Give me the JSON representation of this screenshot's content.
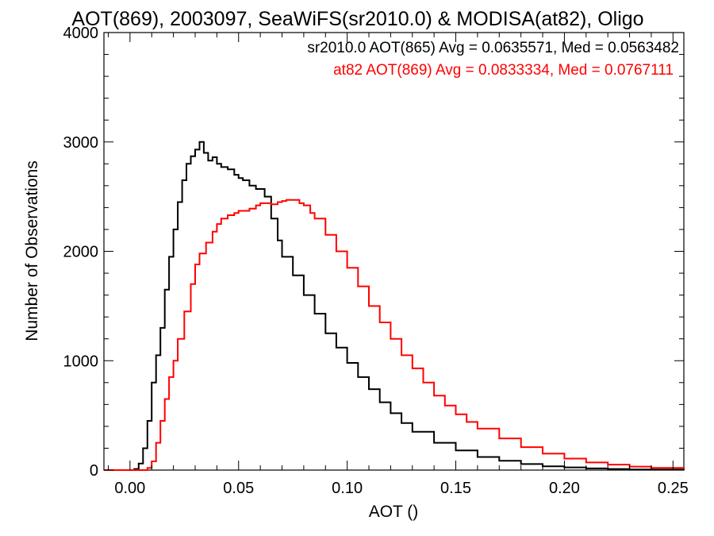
{
  "chart_data": {
    "type": "line",
    "title": "AOT(869), 2003097, SeaWiFS(sr2010.0) & MODISA(at82), Oligo",
    "xlabel": "AOT ()",
    "ylabel": "Number of Observations",
    "xlim": [
      -0.012,
      0.255
    ],
    "ylim": [
      0,
      4000
    ],
    "x_ticks": [
      0.0,
      0.05,
      0.1,
      0.15,
      0.2,
      0.25
    ],
    "x_tick_labels": [
      "0.00",
      "0.05",
      "0.10",
      "0.15",
      "0.20",
      "0.25"
    ],
    "y_ticks": [
      0,
      1000,
      2000,
      3000,
      4000
    ],
    "y_tick_labels": [
      "0",
      "1000",
      "2000",
      "3000",
      "4000"
    ],
    "grid": false,
    "annotations": [
      {
        "text": "sr2010.0 AOT(865) Avg = 0.0635571, Med = 0.0563482",
        "color": "#000000"
      },
      {
        "text": "at82 AOT(869) Avg = 0.0833334, Med = 0.0767111",
        "color": "#ff0000"
      }
    ],
    "series": [
      {
        "color": "#000000",
        "style": "step",
        "x": [
          -0.012,
          0.0,
          0.002,
          0.004,
          0.006,
          0.008,
          0.01,
          0.012,
          0.014,
          0.016,
          0.018,
          0.02,
          0.022,
          0.024,
          0.026,
          0.028,
          0.03,
          0.032,
          0.034,
          0.036,
          0.038,
          0.04,
          0.042,
          0.045,
          0.048,
          0.05,
          0.052,
          0.055,
          0.058,
          0.06,
          0.062,
          0.065,
          0.068,
          0.07,
          0.075,
          0.08,
          0.085,
          0.09,
          0.095,
          0.1,
          0.105,
          0.11,
          0.115,
          0.12,
          0.125,
          0.13,
          0.14,
          0.15,
          0.16,
          0.17,
          0.18,
          0.19,
          0.2,
          0.21,
          0.22,
          0.23,
          0.24,
          0.255
        ],
        "y": [
          0,
          0,
          10,
          60,
          200,
          450,
          800,
          1050,
          1300,
          1650,
          1950,
          2200,
          2450,
          2650,
          2800,
          2870,
          2930,
          3000,
          2900,
          2830,
          2860,
          2800,
          2770,
          2750,
          2700,
          2670,
          2650,
          2600,
          2570,
          2570,
          2500,
          2300,
          2100,
          1950,
          1780,
          1600,
          1430,
          1250,
          1120,
          980,
          850,
          740,
          620,
          520,
          430,
          350,
          250,
          180,
          120,
          85,
          55,
          35,
          25,
          15,
          10,
          6,
          4,
          2
        ]
      },
      {
        "color": "#ff0000",
        "style": "step",
        "x": [
          -0.012,
          0.005,
          0.008,
          0.01,
          0.012,
          0.014,
          0.016,
          0.018,
          0.02,
          0.022,
          0.025,
          0.028,
          0.03,
          0.032,
          0.035,
          0.038,
          0.04,
          0.042,
          0.045,
          0.048,
          0.05,
          0.052,
          0.055,
          0.058,
          0.06,
          0.062,
          0.065,
          0.068,
          0.07,
          0.072,
          0.075,
          0.078,
          0.08,
          0.083,
          0.085,
          0.09,
          0.095,
          0.1,
          0.105,
          0.11,
          0.115,
          0.12,
          0.125,
          0.13,
          0.135,
          0.14,
          0.145,
          0.15,
          0.155,
          0.16,
          0.17,
          0.18,
          0.19,
          0.2,
          0.21,
          0.22,
          0.23,
          0.24,
          0.255
        ],
        "y": [
          0,
          0,
          20,
          80,
          250,
          450,
          650,
          850,
          1000,
          1200,
          1450,
          1700,
          1880,
          1980,
          2080,
          2180,
          2250,
          2300,
          2330,
          2350,
          2370,
          2370,
          2390,
          2420,
          2440,
          2440,
          2430,
          2450,
          2460,
          2470,
          2470,
          2440,
          2420,
          2350,
          2300,
          2150,
          2000,
          1850,
          1680,
          1500,
          1350,
          1200,
          1050,
          930,
          800,
          680,
          590,
          510,
          440,
          380,
          290,
          210,
          150,
          105,
          70,
          50,
          32,
          20,
          10
        ]
      }
    ]
  }
}
